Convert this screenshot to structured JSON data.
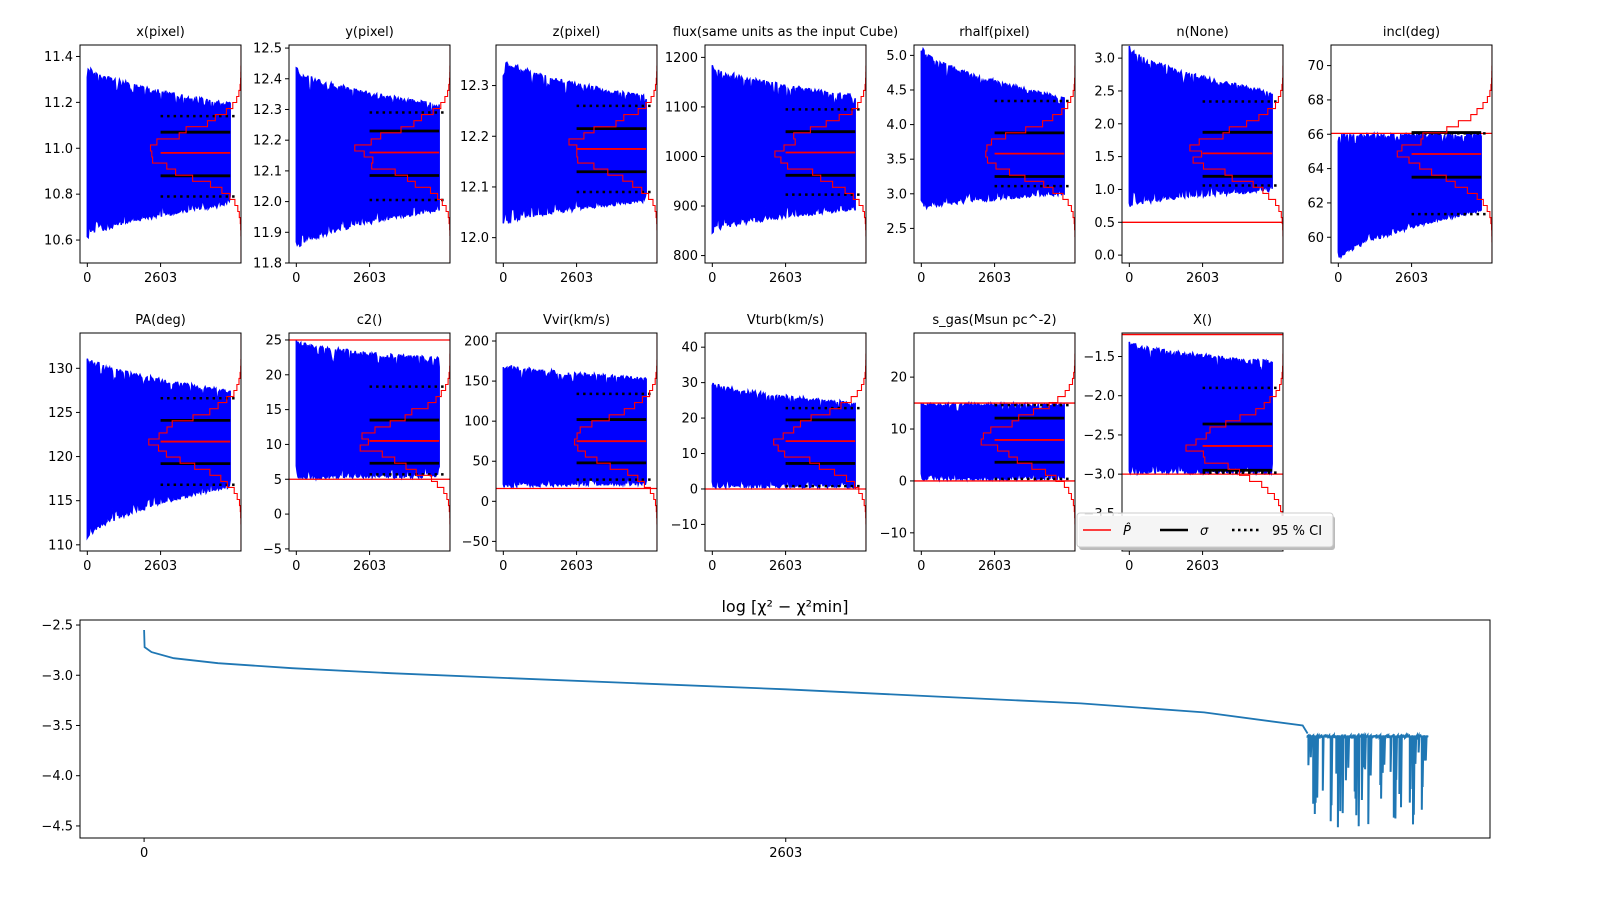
{
  "chart_data": {
    "type": "line",
    "description": "MCMC walker traces per parameter with posterior histogram, best-fit, sigma and 95% CI markers; bottom panel log chi-square trace",
    "total_steps": 5206,
    "burn_in_step": 2603,
    "x_tick_labels": [
      "0",
      "2603"
    ],
    "colors": {
      "trace": "#0000ff",
      "best": "#ff0000",
      "sigma": "#000000",
      "ci": "#000000",
      "chi": "#1f77b4"
    },
    "panels": [
      {
        "title": "x(pixel)",
        "ylim": [
          10.5,
          11.45
        ],
        "yticks": [
          "10.6",
          "10.8",
          "11.0",
          "11.2",
          "11.4"
        ],
        "ytick_values": [
          10.6,
          10.8,
          11.0,
          11.2,
          11.4
        ],
        "best": 10.98,
        "sigma": [
          10.88,
          11.07
        ],
        "ci95": [
          10.79,
          11.14
        ],
        "trace_range_start": [
          10.6,
          11.37
        ],
        "trace_range_end": [
          10.75,
          11.2
        ],
        "priors": []
      },
      {
        "title": "y(pixel)",
        "ylim": [
          11.8,
          12.51
        ],
        "yticks": [
          "11.8",
          "11.9",
          "12.0",
          "12.1",
          "12.2",
          "12.3",
          "12.4",
          "12.5"
        ],
        "ytick_values": [
          11.8,
          11.9,
          12.0,
          12.1,
          12.2,
          12.3,
          12.4,
          12.5
        ],
        "best": 12.16,
        "sigma": [
          12.085,
          12.23
        ],
        "ci95": [
          12.005,
          12.29
        ],
        "trace_range_start": [
          11.84,
          12.44
        ],
        "trace_range_end": [
          11.97,
          12.32
        ],
        "priors": []
      },
      {
        "title": "z(pixel)",
        "ylim": [
          11.95,
          12.38
        ],
        "yticks": [
          "12.0",
          "12.1",
          "12.2",
          "12.3"
        ],
        "ytick_values": [
          12.0,
          12.1,
          12.2,
          12.3
        ],
        "best": 12.175,
        "sigma": [
          12.13,
          12.215
        ],
        "ci95": [
          12.09,
          12.26
        ],
        "trace_range_start": [
          12.02,
          12.36
        ],
        "trace_range_end": [
          12.07,
          12.28
        ],
        "priors": []
      },
      {
        "title": "flux(same units as the input Cube)",
        "ylim": [
          785,
          1225
        ],
        "yticks": [
          "800",
          "900",
          "1000",
          "1100",
          "1200"
        ],
        "ytick_values": [
          800,
          900,
          1000,
          1100,
          1200
        ],
        "best": 1008,
        "sigma": [
          962,
          1050
        ],
        "ci95": [
          923,
          1095
        ],
        "trace_range_start": [
          845,
          1188
        ],
        "trace_range_end": [
          890,
          1125
        ],
        "priors": []
      },
      {
        "title": "rhalf(pixel)",
        "ylim": [
          2.0,
          5.15
        ],
        "yticks": [
          "2.5",
          "3.0",
          "3.5",
          "4.0",
          "4.5",
          "5.0"
        ],
        "ytick_values": [
          2.5,
          3.0,
          3.5,
          4.0,
          4.5,
          5.0
        ],
        "best": 3.58,
        "sigma": [
          3.25,
          3.88
        ],
        "ci95": [
          3.11,
          4.34
        ],
        "trace_range_start": [
          2.75,
          5.15
        ],
        "trace_range_end": [
          2.98,
          4.4
        ],
        "priors": []
      },
      {
        "title": "n(None)",
        "ylim": [
          -0.12,
          3.2
        ],
        "yticks": [
          "0.0",
          "0.5",
          "1.0",
          "1.5",
          "2.0",
          "2.5",
          "3.0"
        ],
        "ytick_values": [
          0.0,
          0.5,
          1.0,
          1.5,
          2.0,
          2.5,
          3.0
        ],
        "best": 1.55,
        "sigma": [
          1.2,
          1.87
        ],
        "ci95": [
          1.06,
          2.34
        ],
        "trace_range_start": [
          0.72,
          3.2
        ],
        "trace_range_end": [
          0.97,
          2.5
        ],
        "priors": [
          0.5
        ]
      },
      {
        "title": "incl(deg)",
        "ylim": [
          58.5,
          71.2
        ],
        "yticks": [
          "60",
          "62",
          "64",
          "66",
          "68",
          "70"
        ],
        "ytick_values": [
          60,
          62,
          64,
          66,
          68,
          70
        ],
        "best": 64.85,
        "sigma": [
          63.5,
          66.1
        ],
        "ci95": [
          61.35,
          66.05
        ],
        "trace_range_start": [
          58.5,
          66.05
        ],
        "trace_range_end": [
          61.5,
          66.05
        ],
        "priors": [
          66.05
        ]
      },
      {
        "title": "PA(deg)",
        "ylim": [
          109.3,
          134
        ],
        "yticks": [
          "110",
          "115",
          "120",
          "125",
          "130"
        ],
        "ytick_values": [
          110,
          115,
          120,
          125,
          130
        ],
        "best": 121.7,
        "sigma": [
          119.2,
          124.1
        ],
        "ci95": [
          116.8,
          126.6
        ],
        "trace_range_start": [
          110.5,
          131.6
        ],
        "trace_range_end": [
          116.5,
          127.5
        ],
        "priors": []
      },
      {
        "title": "c2()",
        "ylim": [
          -5.3,
          26
        ],
        "yticks": [
          "−5",
          "0",
          "5",
          "10",
          "15",
          "20",
          "25"
        ],
        "ytick_values": [
          -5,
          0,
          5,
          10,
          15,
          20,
          25
        ],
        "best": 10.5,
        "sigma": [
          7.3,
          13.5
        ],
        "ci95": [
          5.7,
          18.3
        ],
        "trace_range_start": [
          5.0,
          25.0
        ],
        "trace_range_end": [
          5.2,
          22.5
        ],
        "priors": [
          5.0,
          25.0
        ]
      },
      {
        "title": "Vvir(km/s)",
        "ylim": [
          -62,
          210
        ],
        "yticks": [
          "−50",
          "0",
          "50",
          "100",
          "150",
          "200"
        ],
        "ytick_values": [
          -50,
          0,
          50,
          100,
          150,
          200
        ],
        "best": 75,
        "sigma": [
          48,
          102
        ],
        "ci95": [
          27,
          134
        ],
        "trace_range_start": [
          17,
          173
        ],
        "trace_range_end": [
          20,
          155
        ],
        "priors": [
          16
        ]
      },
      {
        "title": "Vturb(km/s)",
        "ylim": [
          -17.5,
          44
        ],
        "yticks": [
          "−10",
          "0",
          "10",
          "20",
          "30",
          "40"
        ],
        "ytick_values": [
          -10,
          0,
          10,
          20,
          30,
          40
        ],
        "best": 13.5,
        "sigma": [
          7.2,
          19.5
        ],
        "ci95": [
          0.8,
          22.8
        ],
        "trace_range_start": [
          0.2,
          30.5
        ],
        "trace_range_end": [
          0.3,
          24.5
        ],
        "priors": [
          0.0
        ]
      },
      {
        "title": "s_gas(Msun pc^-2)",
        "ylim": [
          -13.5,
          28.5
        ],
        "yticks": [
          "−10",
          "0",
          "10",
          "20"
        ],
        "ytick_values": [
          -10,
          0,
          10,
          20
        ],
        "best": 7.9,
        "sigma": [
          3.6,
          12.1
        ],
        "ci95": [
          0.4,
          14.6
        ],
        "trace_range_start": [
          0.1,
          15.0
        ],
        "trace_range_end": [
          0.2,
          15.0
        ],
        "priors": [
          0.0,
          15.0
        ]
      },
      {
        "title": "X()",
        "ylim": [
          -3.98,
          -1.2
        ],
        "yticks": [
          "−3.5",
          "−3.0",
          "−2.5",
          "−2.0",
          "−1.5"
        ],
        "ytick_values": [
          -3.5,
          -3.0,
          -2.5,
          -2.0,
          -1.5
        ],
        "best": -2.64,
        "sigma": [
          -2.95,
          -2.36
        ],
        "ci95": [
          -2.98,
          -1.9
        ],
        "trace_range_start": [
          -3.0,
          -1.3
        ],
        "trace_range_end": [
          -3.0,
          -1.55
        ],
        "priors": [
          -3.0,
          -1.22
        ]
      }
    ],
    "legend": {
      "placement": "lower-right of last trace panel",
      "entries": [
        {
          "label": "P̂",
          "style": "red solid"
        },
        {
          "label": "σ",
          "style": "black solid"
        },
        {
          "label": "95 % CI",
          "style": "black dotted"
        }
      ]
    },
    "chi_panel": {
      "title": "log [χ² − χ²min]",
      "ylim": [
        -4.62,
        -2.45
      ],
      "yticks": [
        "−4.5",
        "−4.0",
        "−3.5",
        "−3.0",
        "−2.5"
      ],
      "ytick_values": [
        -4.5,
        -4.0,
        -3.5,
        -3.0,
        -2.5
      ],
      "x_tick_labels": [
        "0",
        "2603"
      ],
      "x_tick_values": [
        0,
        2603
      ],
      "xlim": [
        -260,
        5460
      ],
      "curve": [
        [
          0,
          -2.55
        ],
        [
          2,
          -2.72
        ],
        [
          30,
          -2.77
        ],
        [
          120,
          -2.83
        ],
        [
          300,
          -2.88
        ],
        [
          600,
          -2.93
        ],
        [
          1000,
          -2.98
        ],
        [
          1500,
          -3.03
        ],
        [
          2000,
          -3.08
        ],
        [
          2603,
          -3.14
        ],
        [
          3200,
          -3.21
        ],
        [
          3800,
          -3.28
        ],
        [
          4300,
          -3.37
        ],
        [
          4700,
          -3.5
        ],
        [
          4720,
          -3.58
        ]
      ],
      "noisy_segment": {
        "x_start": 4720,
        "x_end": 5206,
        "top": -3.6,
        "min": -4.52
      }
    }
  }
}
